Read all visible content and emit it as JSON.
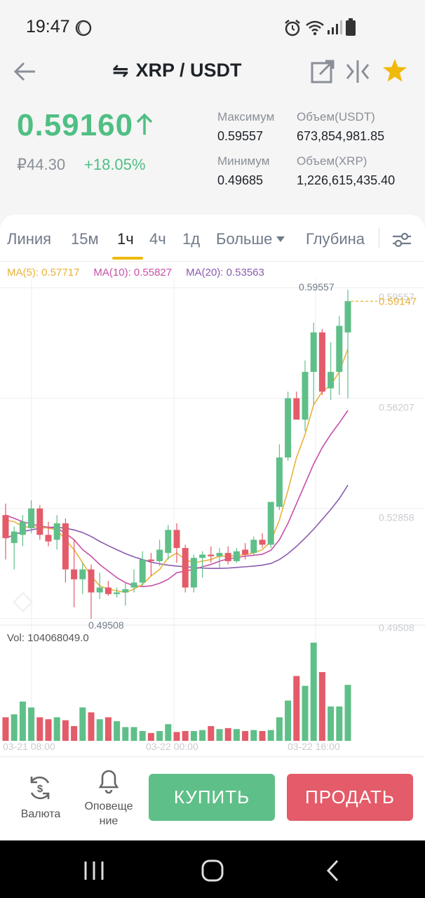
{
  "status_bar": {
    "time": "19:47"
  },
  "header": {
    "pair": "XRP / USDT",
    "swap_symbol": "⇋"
  },
  "price": {
    "last": "0.59160",
    "fiat": "₽44.30",
    "change": "+18.05%",
    "up_color": "#4fbf83"
  },
  "stats": {
    "high_label": "Максимум",
    "high_value": "0.59557",
    "low_label": "Минимум",
    "low_value": "0.49685",
    "vol_usdt_label": "Объем(USDT)",
    "vol_usdt_value": "673,854,981.85",
    "vol_xrp_label": "Объем(XRP)",
    "vol_xrp_value": "1,226,615,435.40"
  },
  "tabs": {
    "line": "Линия",
    "m15": "15м",
    "h1": "1ч",
    "h4": "4ч",
    "d1": "1д",
    "more": "Больше",
    "depth": "Глубина",
    "active": "1ч"
  },
  "ma": {
    "ma5": "MA(5): 0.57717",
    "ma5_color": "#e8b23a",
    "ma10": "MA(10): 0.55827",
    "ma10_color": "#c64fa6",
    "ma20": "MA(20): 0.53563",
    "ma20_color": "#8a5bb0"
  },
  "chart_data": {
    "type": "candlestick",
    "price_axis": [
      "0.59557",
      "0.56207",
      "0.52858",
      "0.49508"
    ],
    "high_marker": "0.59557",
    "low_marker": "0.49508",
    "current_price_tag": "0.59147",
    "volume_label": "Vol: 104068049.0",
    "time_labels": [
      "03-21 08:00",
      "03-22 00:00",
      "03-22 16:00"
    ],
    "ylim": [
      0.495,
      0.5956
    ],
    "candles": [
      {
        "o": 0.5265,
        "h": 0.53,
        "l": 0.513,
        "c": 0.5195
      },
      {
        "o": 0.518,
        "h": 0.523,
        "l": 0.51,
        "c": 0.5215
      },
      {
        "o": 0.5205,
        "h": 0.5265,
        "l": 0.517,
        "c": 0.5245
      },
      {
        "o": 0.5225,
        "h": 0.531,
        "l": 0.521,
        "c": 0.5285
      },
      {
        "o": 0.5285,
        "h": 0.5295,
        "l": 0.519,
        "c": 0.5205
      },
      {
        "o": 0.5205,
        "h": 0.5245,
        "l": 0.517,
        "c": 0.5185
      },
      {
        "o": 0.519,
        "h": 0.5265,
        "l": 0.516,
        "c": 0.524
      },
      {
        "o": 0.524,
        "h": 0.5255,
        "l": 0.506,
        "c": 0.51
      },
      {
        "o": 0.51,
        "h": 0.519,
        "l": 0.4985,
        "c": 0.507
      },
      {
        "o": 0.507,
        "h": 0.512,
        "l": 0.5025,
        "c": 0.51
      },
      {
        "o": 0.51,
        "h": 0.5115,
        "l": 0.495,
        "c": 0.503
      },
      {
        "o": 0.503,
        "h": 0.509,
        "l": 0.501,
        "c": 0.5045
      },
      {
        "o": 0.5045,
        "h": 0.5065,
        "l": 0.502,
        "c": 0.5025
      },
      {
        "o": 0.5025,
        "h": 0.5045,
        "l": 0.5015,
        "c": 0.503
      },
      {
        "o": 0.503,
        "h": 0.506,
        "l": 0.499,
        "c": 0.504
      },
      {
        "o": 0.5045,
        "h": 0.51,
        "l": 0.503,
        "c": 0.506
      },
      {
        "o": 0.506,
        "h": 0.5155,
        "l": 0.505,
        "c": 0.513
      },
      {
        "o": 0.513,
        "h": 0.515,
        "l": 0.508,
        "c": 0.5125
      },
      {
        "o": 0.5125,
        "h": 0.519,
        "l": 0.511,
        "c": 0.516
      },
      {
        "o": 0.515,
        "h": 0.5235,
        "l": 0.513,
        "c": 0.522
      },
      {
        "o": 0.522,
        "h": 0.524,
        "l": 0.512,
        "c": 0.5165
      },
      {
        "o": 0.5165,
        "h": 0.5175,
        "l": 0.503,
        "c": 0.5045
      },
      {
        "o": 0.5045,
        "h": 0.5145,
        "l": 0.503,
        "c": 0.5135
      },
      {
        "o": 0.5135,
        "h": 0.5155,
        "l": 0.5075,
        "c": 0.5145
      },
      {
        "o": 0.5145,
        "h": 0.517,
        "l": 0.512,
        "c": 0.514
      },
      {
        "o": 0.514,
        "h": 0.5165,
        "l": 0.5105,
        "c": 0.515
      },
      {
        "o": 0.515,
        "h": 0.517,
        "l": 0.5115,
        "c": 0.5125
      },
      {
        "o": 0.5125,
        "h": 0.5165,
        "l": 0.512,
        "c": 0.5155
      },
      {
        "o": 0.516,
        "h": 0.518,
        "l": 0.513,
        "c": 0.5145
      },
      {
        "o": 0.515,
        "h": 0.52,
        "l": 0.514,
        "c": 0.519
      },
      {
        "o": 0.519,
        "h": 0.521,
        "l": 0.5165,
        "c": 0.5175
      },
      {
        "o": 0.5175,
        "h": 0.5305,
        "l": 0.5165,
        "c": 0.5305
      },
      {
        "o": 0.529,
        "h": 0.548,
        "l": 0.528,
        "c": 0.544
      },
      {
        "o": 0.544,
        "h": 0.564,
        "l": 0.543,
        "c": 0.562
      },
      {
        "o": 0.562,
        "h": 0.564,
        "l": 0.5555,
        "c": 0.5555
      },
      {
        "o": 0.5555,
        "h": 0.5735,
        "l": 0.552,
        "c": 0.57
      },
      {
        "o": 0.57,
        "h": 0.585,
        "l": 0.56,
        "c": 0.582
      },
      {
        "o": 0.582,
        "h": 0.583,
        "l": 0.563,
        "c": 0.564
      },
      {
        "o": 0.565,
        "h": 0.579,
        "l": 0.5615,
        "c": 0.57
      },
      {
        "o": 0.57,
        "h": 0.587,
        "l": 0.563,
        "c": 0.584
      },
      {
        "o": 0.582,
        "h": 0.595,
        "l": 0.562,
        "c": 0.5915
      }
    ],
    "volumes": [
      24,
      27,
      40,
      34,
      24,
      22,
      24,
      21,
      15,
      34,
      29,
      22,
      24,
      20,
      14,
      14,
      10,
      8,
      10,
      17,
      9,
      10,
      10,
      11,
      15,
      12,
      13,
      12,
      10,
      11,
      10,
      11,
      24,
      41,
      66,
      56,
      100,
      70,
      35,
      35,
      57
    ],
    "ma5": [
      0.525,
      0.5245,
      0.523,
      0.5228,
      0.523,
      0.5225,
      0.522,
      0.519,
      0.516,
      0.512,
      0.508,
      0.505,
      0.504,
      0.5035,
      0.503,
      0.504,
      0.5055,
      0.508,
      0.51,
      0.5135,
      0.515,
      0.513,
      0.512,
      0.5125,
      0.513,
      0.514,
      0.514,
      0.5142,
      0.5145,
      0.515,
      0.516,
      0.5185,
      0.525,
      0.534,
      0.544,
      0.551,
      0.56,
      0.564,
      0.566,
      0.57,
      0.577
    ],
    "ma10": [
      0.5265,
      0.5255,
      0.5245,
      0.5238,
      0.5232,
      0.5228,
      0.5225,
      0.521,
      0.519,
      0.516,
      0.514,
      0.5115,
      0.5095,
      0.5075,
      0.506,
      0.505,
      0.5048,
      0.505,
      0.5058,
      0.507,
      0.509,
      0.5095,
      0.51,
      0.5108,
      0.5115,
      0.5125,
      0.5132,
      0.5136,
      0.514,
      0.5143,
      0.5146,
      0.5158,
      0.519,
      0.524,
      0.53,
      0.536,
      0.542,
      0.547,
      0.551,
      0.5545,
      0.5583
    ],
    "ma20": [
      0.5195,
      0.5205,
      0.5215,
      0.522,
      0.5225,
      0.5228,
      0.5228,
      0.5225,
      0.522,
      0.5212,
      0.52,
      0.5185,
      0.5172,
      0.516,
      0.5148,
      0.5138,
      0.513,
      0.5122,
      0.5117,
      0.5113,
      0.511,
      0.5108,
      0.5106,
      0.5104,
      0.5103,
      0.5103,
      0.5104,
      0.5106,
      0.5108,
      0.511,
      0.5113,
      0.5118,
      0.513,
      0.5148,
      0.517,
      0.5195,
      0.5222,
      0.5252,
      0.5282,
      0.5315,
      0.5356
    ]
  },
  "actions": {
    "currency_label": "Валюта",
    "alerts_label_1": "Оповеще",
    "alerts_label_2": "ние",
    "buy_label": "КУПИТЬ",
    "sell_label": "ПРОДАТЬ",
    "buy_color": "#5fbf88",
    "sell_color": "#e45b69"
  }
}
